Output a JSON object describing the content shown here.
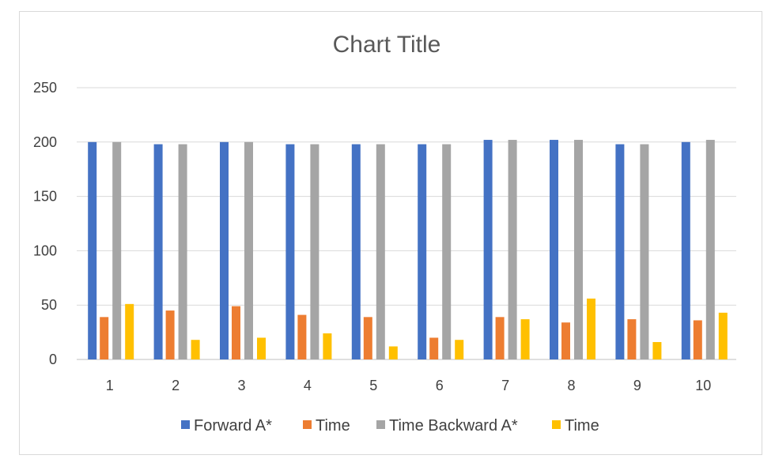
{
  "chart_data": {
    "type": "bar",
    "title": "Chart Title",
    "xlabel": "",
    "ylabel": "",
    "categories": [
      "1",
      "2",
      "3",
      "4",
      "5",
      "6",
      "7",
      "8",
      "9",
      "10"
    ],
    "ylim": [
      0,
      250
    ],
    "yticks": [
      "0",
      "50",
      "100",
      "150",
      "200",
      "250"
    ],
    "grid": true,
    "legend_position": "bottom",
    "series": [
      {
        "name": "Forward A*",
        "color": "#4472C4",
        "values": [
          200,
          198,
          200,
          198,
          198,
          198,
          202,
          202,
          198,
          200
        ]
      },
      {
        "name": "Time",
        "color": "#ED7D31",
        "values": [
          39,
          45,
          49,
          41,
          39,
          20,
          39,
          34,
          37,
          36
        ]
      },
      {
        "name": "Time Backward A*",
        "color": "#A5A5A5",
        "values": [
          200,
          198,
          200,
          198,
          198,
          198,
          202,
          202,
          198,
          202
        ]
      },
      {
        "name": "Time",
        "color": "#FFC000",
        "values": [
          51,
          18,
          20,
          24,
          12,
          18,
          37,
          56,
          16,
          43
        ]
      }
    ]
  }
}
